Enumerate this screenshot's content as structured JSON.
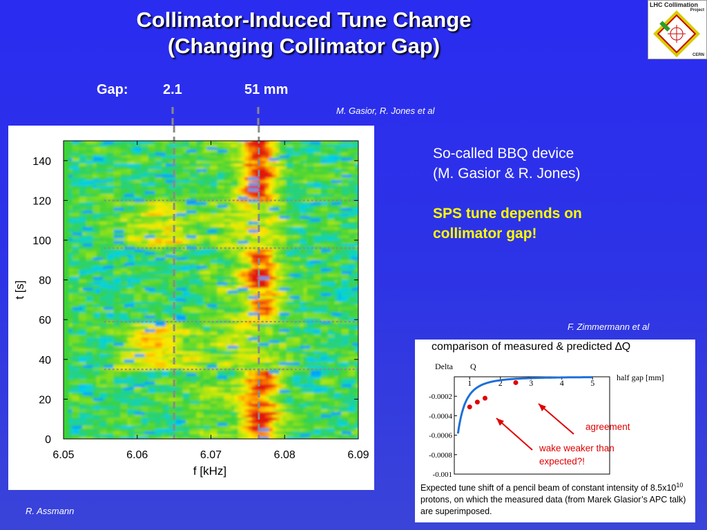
{
  "title_line1": "Collimator-Induced Tune Change",
  "title_line2": "(Changing Collimator Gap)",
  "logo": {
    "title": "LHC Collimation",
    "subtitle": "Project",
    "org": "CERN"
  },
  "gap": {
    "label": "Gap:",
    "value1": "2.1",
    "value2": "51 mm"
  },
  "credit_top": "M. Gasior, R. Jones et al",
  "credit_inset": "F. Zimmermann et al",
  "author": "R. Assmann",
  "spectrogram": {
    "xlabel": "f [kHz]",
    "ylabel": "t [s]",
    "xticks": [
      "6.05",
      "6.06",
      "6.07",
      "6.08",
      "6.09"
    ],
    "yticks": [
      "0",
      "20",
      "40",
      "60",
      "80",
      "100",
      "120",
      "140"
    ],
    "xlim": [
      6.05,
      6.09
    ],
    "ylim": [
      0,
      150
    ],
    "tune_line_gap_2_1": 6.065,
    "tune_line_gap_51": 6.0765,
    "gap_change_times": [
      35,
      59,
      96,
      120
    ]
  },
  "side_text": {
    "line1": "So-called BBQ device",
    "line2": "(M. Gasior & R. Jones)",
    "highlight1": "SPS tune depends on",
    "highlight2": "collimator gap!"
  },
  "inset": {
    "title": "comparison of measured & predicted ∆Q",
    "ylabel_a": "Delta",
    "ylabel_b": "Q",
    "xlabel": "half  gap  [mm]",
    "xticks": [
      "1",
      "2",
      "3",
      "4",
      "5"
    ],
    "yticks": [
      "-0.0002",
      "-0.0004",
      "-0.0006",
      "-0.0008",
      "-0.001"
    ],
    "note_agreement": "agreement",
    "note_wake1": "wake weaker than",
    "note_wake2": "expected?!",
    "caption_a": "Expected tune shift of a pencil beam of constant intensity of 8.5x10",
    "caption_sup": "10",
    "caption_b": " protons, on which the measured data (from Marek Glasior’s APC talk) are superimposed."
  },
  "colors": {
    "background": "#2a2cf0",
    "highlight": "#ffff00",
    "curve": "#1e6fd9",
    "points": "#e00000"
  }
}
